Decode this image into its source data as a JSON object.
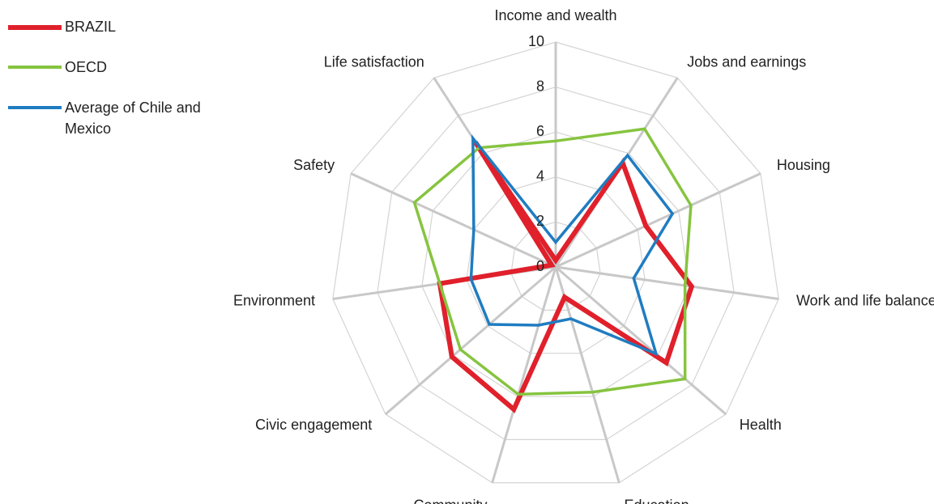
{
  "chart_data": {
    "type": "radar",
    "categories": [
      "Income and wealth",
      "Jobs and earnings",
      "Housing",
      "Work and life balance",
      "Health",
      "Education",
      "Community",
      "Civic engagement",
      "Environment",
      "Safety",
      "Life satisfaction"
    ],
    "series": [
      {
        "name": "BRAZIL",
        "color": "#e0202b",
        "values": [
          0.3,
          5.5,
          4.4,
          6.1,
          6.5,
          1.4,
          6.6,
          6.1,
          5.2,
          0.2,
          6.6
        ]
      },
      {
        "name": "OECD",
        "color": "#86c43f",
        "values": [
          5.6,
          7.3,
          6.6,
          5.8,
          7.6,
          5.8,
          5.9,
          5.6,
          5.2,
          6.9,
          6.3
        ]
      },
      {
        "name": "Average of Chile and Mexico",
        "color": "#1f7cc1",
        "values": [
          1.1,
          5.9,
          5.7,
          3.5,
          5.9,
          2.4,
          2.7,
          3.9,
          3.8,
          4.0,
          6.8
        ]
      }
    ],
    "ylim": [
      0,
      10
    ],
    "yticks": [
      0,
      2,
      4,
      6,
      8,
      10
    ],
    "grid": true
  }
}
